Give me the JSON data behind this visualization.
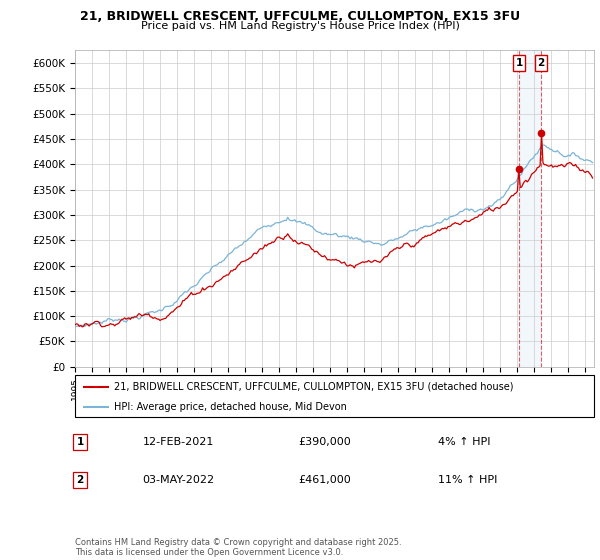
{
  "title_line1": "21, BRIDWELL CRESCENT, UFFCULME, CULLOMPTON, EX15 3FU",
  "title_line2": "Price paid vs. HM Land Registry's House Price Index (HPI)",
  "ylabel_ticks": [
    "£0",
    "£50K",
    "£100K",
    "£150K",
    "£200K",
    "£250K",
    "£300K",
    "£350K",
    "£400K",
    "£450K",
    "£500K",
    "£550K",
    "£600K"
  ],
  "ytick_values": [
    0,
    50000,
    100000,
    150000,
    200000,
    250000,
    300000,
    350000,
    400000,
    450000,
    500000,
    550000,
    600000
  ],
  "hpi_color": "#7ab4d8",
  "price_color": "#cc0000",
  "vline_color": "#cc0000",
  "shade_color": "#cce0f0",
  "legend_label_price": "21, BRIDWELL CRESCENT, UFFCULME, CULLOMPTON, EX15 3FU (detached house)",
  "legend_label_hpi": "HPI: Average price, detached house, Mid Devon",
  "transaction1_date": "12-FEB-2021",
  "transaction1_price": "£390,000",
  "transaction1_hpi": "4% ↑ HPI",
  "transaction1_price_val": 390000,
  "transaction1_year": 2021.1,
  "transaction2_date": "03-MAY-2022",
  "transaction2_price": "£461,000",
  "transaction2_hpi": "11% ↑ HPI",
  "transaction2_price_val": 461000,
  "transaction2_year": 2022.4,
  "footer": "Contains HM Land Registry data © Crown copyright and database right 2025.\nThis data is licensed under the Open Government Licence v3.0.",
  "xstart_year": 1995,
  "xend_year": 2025
}
